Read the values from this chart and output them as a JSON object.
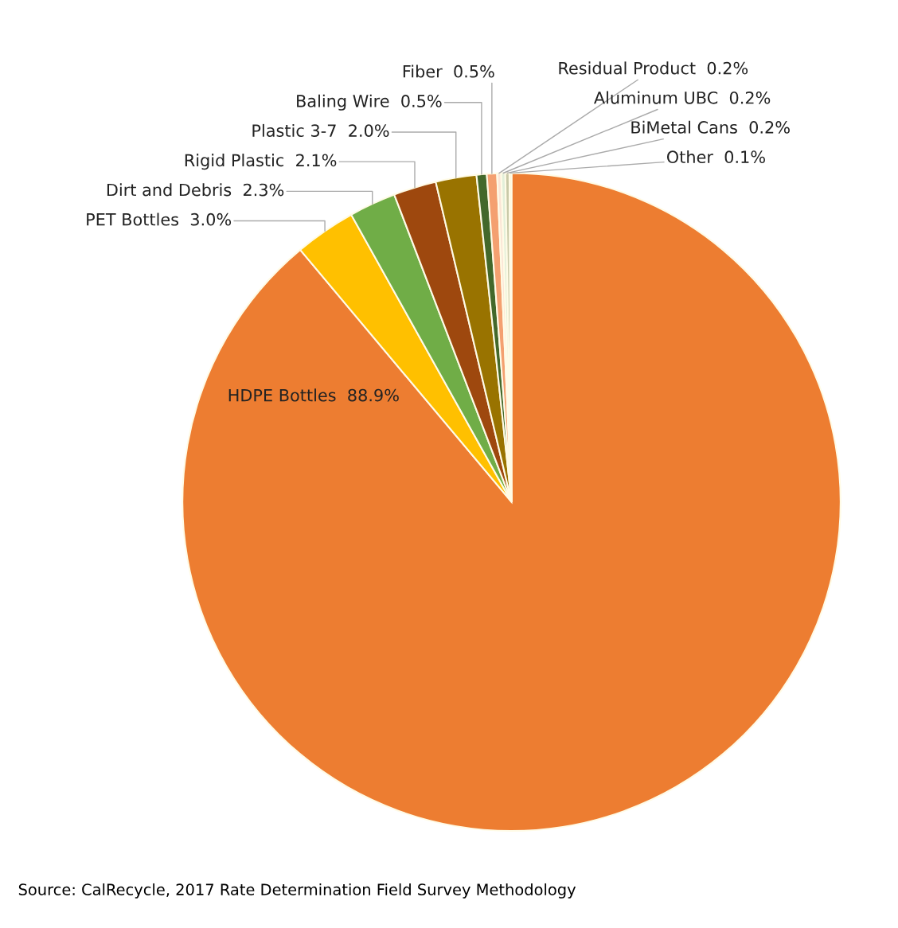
{
  "chart_data": {
    "type": "pie",
    "categories": [
      "HDPE Bottles",
      "PET Bottles",
      "Dirt and Debris",
      "Rigid Plastic",
      "Plastic 3-7",
      "Baling Wire",
      "Fiber",
      "Residual Product",
      "Aluminum UBC",
      "BiMetal Cans",
      "Other"
    ],
    "values": [
      88.9,
      3.0,
      2.3,
      2.1,
      2.0,
      0.5,
      0.5,
      0.2,
      0.2,
      0.2,
      0.1
    ],
    "value_labels": [
      "88.9%",
      "3.0%",
      "2.3%",
      "2.1%",
      "2.0%",
      "0.5%",
      "0.5%",
      "0.2%",
      "0.2%",
      "0.2%",
      "0.1%"
    ],
    "colors": [
      "#ed7d31",
      "#ffc000",
      "#70ad47",
      "#9e480e",
      "#997300",
      "#43682b",
      "#f4a070",
      "#fbe5d6",
      "#e2efda",
      "#c9c9a8",
      "#fff2cc"
    ],
    "annotations": [
      "Source: CalRecycle, 2017 Rate Determination Field Survey Methodology"
    ]
  }
}
